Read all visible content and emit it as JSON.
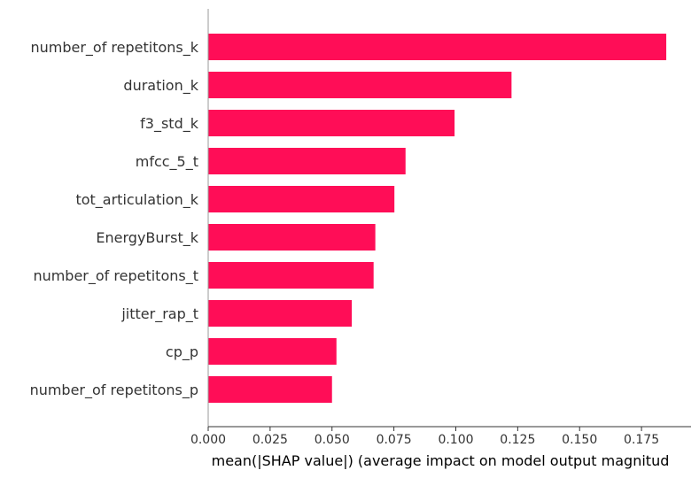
{
  "chart_data": {
    "type": "bar",
    "orientation": "horizontal",
    "categories": [
      "number_of repetitons_k",
      "duration_k",
      "f3_std_k",
      "mfcc_5_t",
      "tot_articulation_k",
      "EnergyBurst_k",
      "number_of repetitons_t",
      "jitter_rap_t",
      "cp_p",
      "number_of repetitons_p"
    ],
    "values": [
      0.185,
      0.1225,
      0.0995,
      0.0797,
      0.0752,
      0.0675,
      0.0668,
      0.058,
      0.0518,
      0.05
    ],
    "xlim": [
      0,
      0.195
    ],
    "x_ticks": [
      "0.000",
      "0.025",
      "0.050",
      "0.075",
      "0.100",
      "0.125",
      "0.150",
      "0.175"
    ],
    "xlabel": "mean(|SHAP value|) (average impact on model output magnitud",
    "ylabel": "",
    "title": "",
    "grid": false,
    "bar_color": "#ff0d57",
    "axis_color": "#999999",
    "text_color": "#333333"
  }
}
